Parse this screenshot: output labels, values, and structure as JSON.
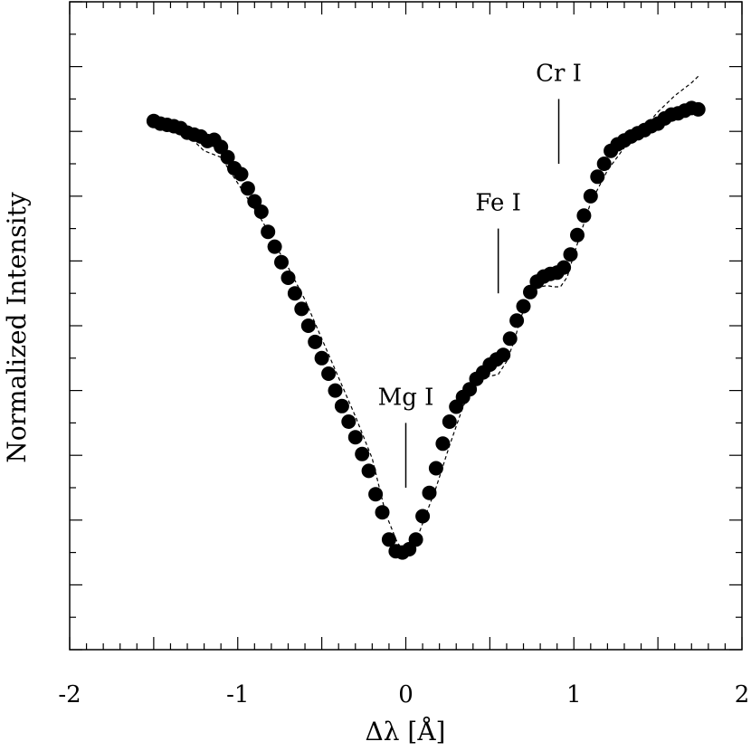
{
  "chart_data": {
    "type": "scatter",
    "title": "",
    "xlabel": "Δλ [Å]",
    "ylabel": "Normalized Intensity",
    "xlim": [
      -2,
      2
    ],
    "ylim": [
      0,
      1
    ],
    "xticks": [
      -2,
      -1,
      0,
      1,
      2
    ],
    "x_tick_labels": [
      "-2",
      "-1",
      "0",
      "1",
      "2"
    ],
    "y_tick_labels_shown": false,
    "grid": false,
    "series": [
      {
        "style": "filled-circles",
        "x": [
          -1.5,
          -1.46,
          -1.42,
          -1.38,
          -1.34,
          -1.3,
          -1.26,
          -1.22,
          -1.18,
          -1.14,
          -1.1,
          -1.06,
          -1.02,
          -0.98,
          -0.94,
          -0.9,
          -0.86,
          -0.82,
          -0.78,
          -0.74,
          -0.7,
          -0.66,
          -0.62,
          -0.58,
          -0.54,
          -0.5,
          -0.46,
          -0.42,
          -0.38,
          -0.34,
          -0.3,
          -0.26,
          -0.22,
          -0.18,
          -0.14,
          -0.1,
          -0.06,
          -0.02,
          0.02,
          0.06,
          0.1,
          0.14,
          0.18,
          0.22,
          0.26,
          0.3,
          0.34,
          0.38,
          0.42,
          0.46,
          0.5,
          0.54,
          0.58,
          0.62,
          0.66,
          0.7,
          0.74,
          0.78,
          0.82,
          0.86,
          0.9,
          0.94,
          0.98,
          1.02,
          1.06,
          1.1,
          1.14,
          1.18,
          1.22,
          1.26,
          1.3,
          1.34,
          1.38,
          1.42,
          1.46,
          1.5,
          1.54,
          1.58,
          1.62,
          1.66,
          1.7,
          1.74
        ],
        "y": [
          0.816,
          0.812,
          0.81,
          0.808,
          0.805,
          0.798,
          0.795,
          0.792,
          0.785,
          0.787,
          0.776,
          0.76,
          0.743,
          0.734,
          0.712,
          0.692,
          0.676,
          0.645,
          0.622,
          0.598,
          0.574,
          0.55,
          0.526,
          0.5,
          0.475,
          0.45,
          0.426,
          0.4,
          0.376,
          0.352,
          0.328,
          0.302,
          0.276,
          0.24,
          0.212,
          0.17,
          0.152,
          0.15,
          0.155,
          0.17,
          0.206,
          0.242,
          0.28,
          0.318,
          0.352,
          0.375,
          0.39,
          0.402,
          0.418,
          0.428,
          0.44,
          0.448,
          0.455,
          0.48,
          0.508,
          0.53,
          0.552,
          0.568,
          0.576,
          0.58,
          0.582,
          0.59,
          0.61,
          0.64,
          0.67,
          0.7,
          0.73,
          0.75,
          0.77,
          0.78,
          0.786,
          0.792,
          0.797,
          0.802,
          0.808,
          0.812,
          0.82,
          0.826,
          0.828,
          0.832,
          0.836,
          0.834
        ]
      },
      {
        "style": "dashed-line",
        "x": [
          -1.3,
          -1.2,
          -1.1,
          -1.0,
          -0.95,
          -0.9,
          -0.85,
          -0.8,
          -0.7,
          -0.6,
          -0.5,
          -0.4,
          -0.3,
          -0.2,
          -0.12,
          -0.05,
          0.0,
          0.05,
          0.1,
          0.18,
          0.26,
          0.34,
          0.4,
          0.45,
          0.5,
          0.55,
          0.6,
          0.65,
          0.68,
          0.72,
          0.76,
          0.8,
          0.84,
          0.88,
          0.92,
          0.96,
          1.0,
          1.05,
          1.1,
          1.2,
          1.3,
          1.4,
          1.5,
          1.6,
          1.7,
          1.74
        ],
        "y": [
          0.795,
          0.77,
          0.76,
          0.72,
          0.7,
          0.68,
          0.66,
          0.635,
          0.59,
          0.54,
          0.48,
          0.42,
          0.36,
          0.295,
          0.21,
          0.165,
          0.15,
          0.16,
          0.195,
          0.25,
          0.315,
          0.375,
          0.405,
          0.42,
          0.422,
          0.425,
          0.445,
          0.48,
          0.51,
          0.535,
          0.555,
          0.56,
          0.562,
          0.56,
          0.56,
          0.575,
          0.61,
          0.65,
          0.69,
          0.74,
          0.775,
          0.8,
          0.83,
          0.855,
          0.875,
          0.885
        ]
      }
    ],
    "annotations": [
      {
        "text": "Mg I",
        "x": 0.0,
        "marker_y": [
          0.25,
          0.35
        ]
      },
      {
        "text": "Fe I",
        "x": 0.55,
        "marker_y": [
          0.55,
          0.65
        ]
      },
      {
        "text": "Cr I",
        "x": 0.91,
        "marker_y": [
          0.75,
          0.85
        ]
      }
    ]
  }
}
